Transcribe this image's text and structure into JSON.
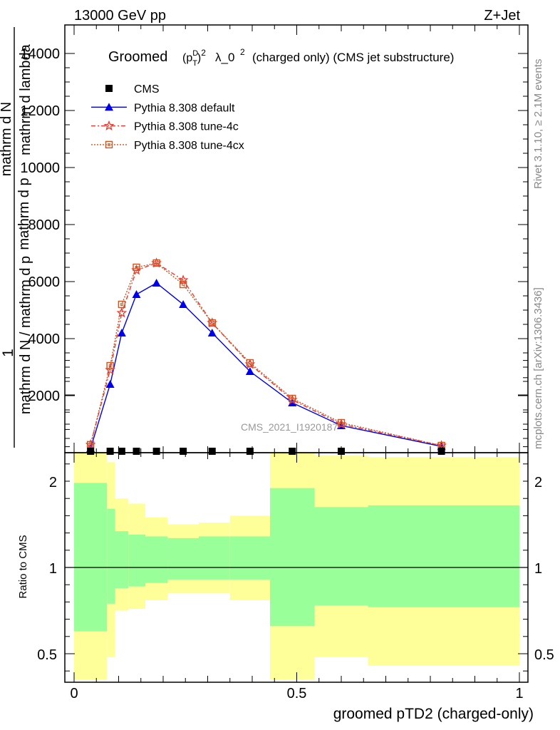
{
  "header": {
    "left": "13000 GeV pp",
    "right": "Z+Jet"
  },
  "plot_title": {
    "pre": "Groomed",
    "mid": "λ_0",
    "post": "(charged only) (CMS jet substructure)"
  },
  "side_text": {
    "rivet": "Rivet 3.1.10, ≥ 2.1M events",
    "mcplots": "mcplots.cern.ch [arXiv:1306.3436]"
  },
  "watermark": "CMS_2021_I1920187",
  "main_ylabel": {
    "numer_top": "1",
    "line_a": "mathrm d N / mathrm d p",
    "line_b": "mathrm d N",
    "line_c": "mathrm d p",
    "line_d": "mathrm d lambda"
  },
  "ratio_ylabel": "Ratio to CMS",
  "xlabel": "groomed pTD2 (charged-only)",
  "colors": {
    "cms": "#000000",
    "default": "#0000ee",
    "tune4c": "#e8392f",
    "tune4cx": "#cc5522",
    "band_inner": "#99ff99",
    "band_outer": "#ffff99"
  },
  "legend": [
    {
      "label": "CMS",
      "marker": "square"
    },
    {
      "label": "Pythia 8.308 default",
      "marker": "triangle"
    },
    {
      "label": "Pythia 8.308 tune-4c",
      "marker": "star"
    },
    {
      "label": "Pythia 8.308 tune-4cx",
      "marker": "open-square"
    }
  ],
  "chart_data": {
    "type": "line",
    "xlim": [
      0,
      1
    ],
    "ylim": [
      0,
      14000
    ],
    "ratio_ylim": [
      0.35,
      2.25
    ],
    "x_ticks": [
      "0",
      "0.5",
      "1"
    ],
    "y_ticks": [
      "2000",
      "4000",
      "6000",
      "8000",
      "10000",
      "12000",
      "14000"
    ],
    "ratio_ticks": [
      "0.5",
      "1",
      "2"
    ],
    "x": [
      0.037,
      0.081,
      0.107,
      0.14,
      0.185,
      0.245,
      0.31,
      0.395,
      0.49,
      0.6,
      0.825
    ],
    "series": [
      {
        "name": "CMS",
        "values": [
          0,
          0,
          0,
          0,
          0,
          0,
          0,
          0,
          0,
          0,
          0
        ]
      },
      {
        "name": "Pythia 8.308 default",
        "values": [
          150,
          2400,
          4200,
          5550,
          5950,
          5200,
          4200,
          2850,
          1750,
          950,
          220
        ]
      },
      {
        "name": "Pythia 8.308 tune-4c",
        "values": [
          280,
          2900,
          4900,
          6400,
          6650,
          6050,
          4550,
          3100,
          1850,
          1000,
          250
        ]
      },
      {
        "name": "Pythia 8.308 tune-4cx",
        "values": [
          280,
          3050,
          5200,
          6500,
          6650,
          5900,
          4550,
          3150,
          1900,
          1050,
          250
        ]
      }
    ],
    "ratio_bands": {
      "edges": [
        0.0,
        0.074,
        0.092,
        0.122,
        0.16,
        0.21,
        0.28,
        0.35,
        0.44,
        0.54,
        0.66,
        1.0
      ],
      "inner_lo": [
        0.63,
        0.79,
        0.88,
        0.89,
        0.91,
        0.93,
        0.93,
        0.93,
        0.66,
        0.78,
        0.77
      ],
      "inner_hi": [
        1.49,
        1.34,
        1.21,
        1.19,
        1.18,
        1.17,
        1.18,
        1.18,
        1.46,
        1.35,
        1.36
      ],
      "outer_lo": [
        0.35,
        0.48,
        0.75,
        0.76,
        0.81,
        0.85,
        0.85,
        0.81,
        0.35,
        0.48,
        0.43
      ],
      "outer_hi": [
        1.86,
        1.61,
        1.4,
        1.37,
        1.29,
        1.25,
        1.26,
        1.3,
        1.81,
        1.65,
        1.64
      ]
    }
  }
}
